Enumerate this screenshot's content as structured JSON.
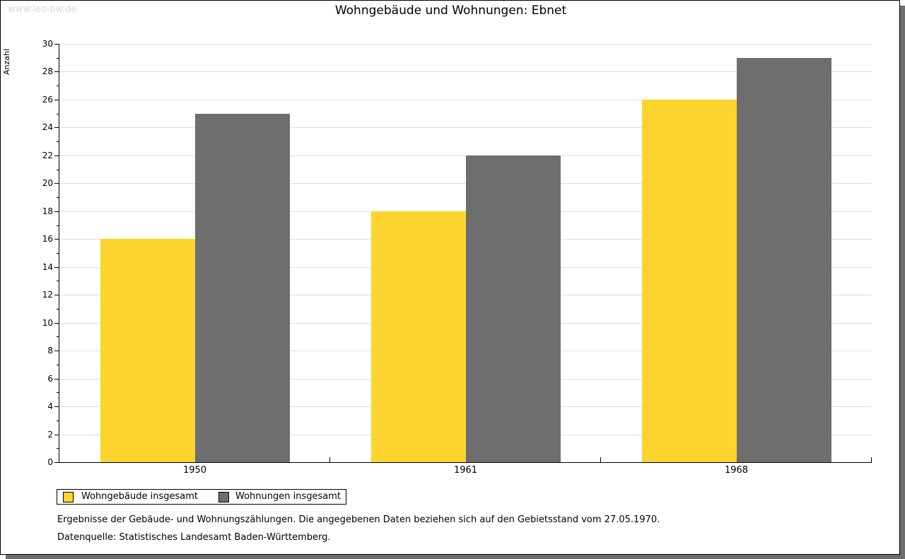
{
  "watermark": "www.leo-bw.de",
  "title": "Wohngebäude und Wohnungen: Ebnet",
  "chart_data": {
    "type": "bar",
    "title": "Wohngebäude und Wohnungen: Ebnet",
    "categories": [
      "1950",
      "1961",
      "1968"
    ],
    "series": [
      {
        "name": "Wohngebäude insgesamt",
        "color": "#fcd42d",
        "values": [
          16,
          18,
          26
        ]
      },
      {
        "name": "Wohnungen insgesamt",
        "color": "#6e6e6e",
        "values": [
          25,
          22,
          29
        ]
      }
    ],
    "xlabel": "",
    "ylabel": "Anzahl",
    "ylim": [
      0,
      30
    ],
    "ytick_label_step": 2,
    "ytick_minor_step": 1,
    "grid": "horizontal-even-only",
    "legend_position": "bottom-left"
  },
  "legend": {
    "items": [
      {
        "label": "Wohngebäude insgesamt",
        "color": "#fcd42d"
      },
      {
        "label": "Wohnungen insgesamt",
        "color": "#6e6e6e"
      }
    ]
  },
  "footnotes": {
    "line1": "Ergebnisse der Gebäude- und Wohnungszählungen. Die angegebenen Daten beziehen sich auf den Gebietsstand vom 27.05.1970.",
    "line2": "Datenquelle: Statistisches Landesamt Baden-Württemberg."
  },
  "colors": {
    "bar_yellow": "#fcd42d",
    "bar_gray": "#6e6e6e",
    "gridline": "#dedede",
    "axis": "#000000",
    "watermark": "#d8d8d8",
    "frame_shadow": "#6e6e6e",
    "background": "#ffffff"
  }
}
